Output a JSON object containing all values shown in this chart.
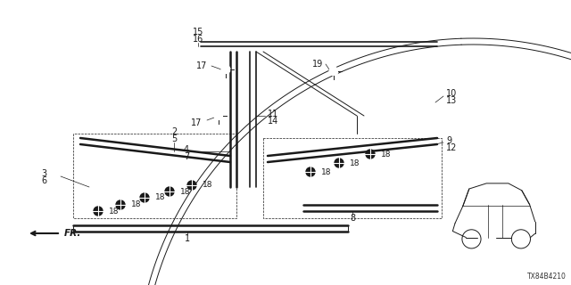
{
  "bg_color": "#ffffff",
  "diagram_number": "TX84B4210",
  "col": "#1a1a1a",
  "fig_w": 6.4,
  "fig_h": 3.2,
  "dpi": 100
}
